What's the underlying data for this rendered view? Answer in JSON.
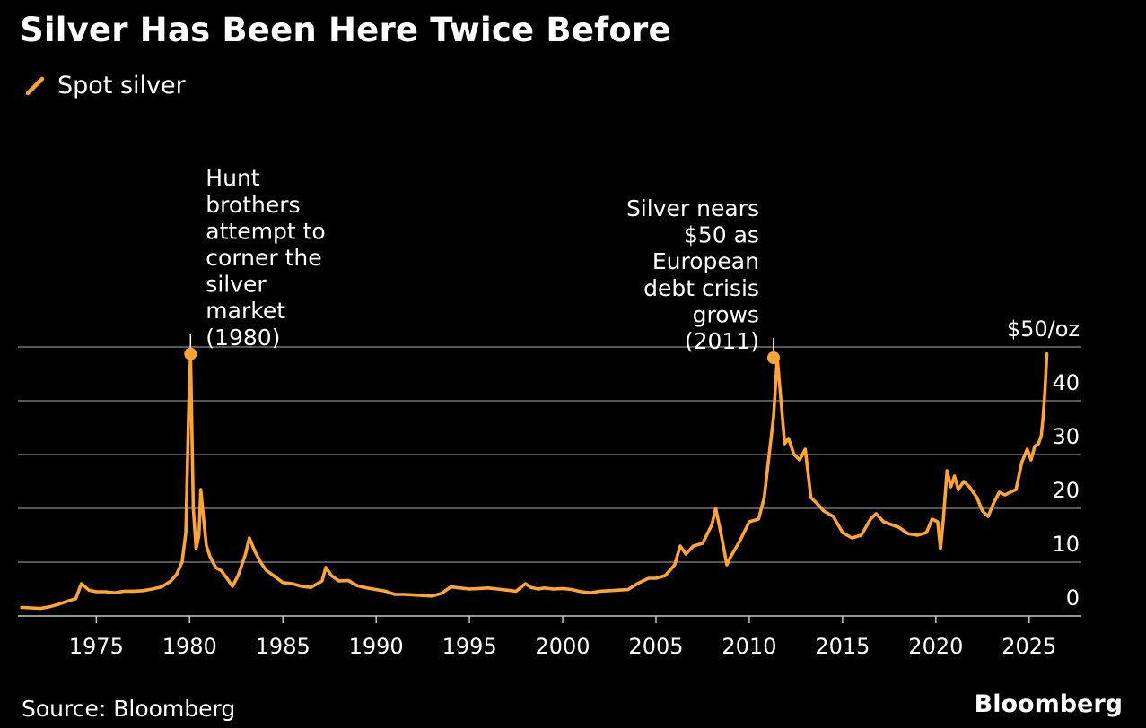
{
  "header": {
    "title": "Silver Has Been Here Twice Before"
  },
  "legend": {
    "label": "Spot silver",
    "color": "#ffa42f"
  },
  "footer": {
    "source": "Source: Bloomberg",
    "brand": "Bloomberg"
  },
  "chart_data": {
    "type": "line",
    "title": "Silver Has Been Here Twice Before",
    "xlabel": "",
    "ylabel": "",
    "xlim": [
      1970.8,
      2027.8
    ],
    "ylim": [
      0,
      50
    ],
    "grid": true,
    "legend_position": "top-left",
    "y_ticks": [
      {
        "value": 0,
        "label": "0"
      },
      {
        "value": 10,
        "label": "10"
      },
      {
        "value": 20,
        "label": "20"
      },
      {
        "value": 30,
        "label": "30"
      },
      {
        "value": 40,
        "label": "40"
      },
      {
        "value": 50,
        "label": "$50/oz"
      }
    ],
    "x_ticks": [
      {
        "value": 1975,
        "label": "1975"
      },
      {
        "value": 1980,
        "label": "1980"
      },
      {
        "value": 1985,
        "label": "1985"
      },
      {
        "value": 1990,
        "label": "1990"
      },
      {
        "value": 1995,
        "label": "1995"
      },
      {
        "value": 2000,
        "label": "2000"
      },
      {
        "value": 2005,
        "label": "2005"
      },
      {
        "value": 2010,
        "label": "2010"
      },
      {
        "value": 2015,
        "label": "2015"
      },
      {
        "value": 2020,
        "label": "2020"
      },
      {
        "value": 2025,
        "label": "2025"
      }
    ],
    "series": [
      {
        "name": "Spot silver",
        "color": "#ffa42f",
        "x": [
          1971.0,
          1971.5,
          1972.0,
          1972.5,
          1973.0,
          1973.5,
          1973.9,
          1974.2,
          1974.6,
          1975.0,
          1975.5,
          1976.0,
          1976.5,
          1977.0,
          1977.5,
          1978.0,
          1978.5,
          1979.0,
          1979.3,
          1979.6,
          1979.8,
          1979.95,
          1980.05,
          1980.2,
          1980.35,
          1980.5,
          1980.6,
          1980.75,
          1980.9,
          1981.1,
          1981.4,
          1981.7,
          1982.0,
          1982.3,
          1982.6,
          1983.0,
          1983.2,
          1983.5,
          1983.8,
          1984.1,
          1984.5,
          1985.0,
          1985.5,
          1986.0,
          1986.5,
          1987.1,
          1987.3,
          1987.6,
          1988.0,
          1988.5,
          1989.0,
          1989.5,
          1990.0,
          1990.5,
          1991.0,
          1991.5,
          1992.0,
          1992.5,
          1993.0,
          1993.5,
          1994.0,
          1994.5,
          1995.0,
          1995.5,
          1996.0,
          1996.5,
          1997.0,
          1997.5,
          1998.0,
          1998.3,
          1998.7,
          1999.0,
          1999.5,
          2000.0,
          2000.5,
          2001.0,
          2001.5,
          2002.0,
          2002.5,
          2003.0,
          2003.5,
          2004.0,
          2004.3,
          2004.6,
          2005.0,
          2005.5,
          2006.0,
          2006.3,
          2006.6,
          2007.0,
          2007.5,
          2008.0,
          2008.2,
          2008.5,
          2008.8,
          2009.0,
          2009.5,
          2010.0,
          2010.5,
          2010.8,
          2011.0,
          2011.3,
          2011.5,
          2011.7,
          2011.9,
          2012.1,
          2012.4,
          2012.7,
          2013.0,
          2013.3,
          2013.6,
          2014.0,
          2014.5,
          2015.0,
          2015.5,
          2016.0,
          2016.5,
          2016.8,
          2017.2,
          2017.6,
          2018.0,
          2018.5,
          2019.0,
          2019.5,
          2019.8,
          2020.1,
          2020.25,
          2020.4,
          2020.6,
          2020.8,
          2021.0,
          2021.2,
          2021.5,
          2021.8,
          2022.2,
          2022.5,
          2022.8,
          2023.1,
          2023.4,
          2023.7,
          2024.0,
          2024.3,
          2024.6,
          2024.9,
          2025.1,
          2025.3,
          2025.5,
          2025.65,
          2025.75,
          2025.85,
          2025.95
        ],
        "y": [
          1.6,
          1.5,
          1.4,
          1.7,
          2.2,
          2.8,
          3.2,
          6.0,
          4.8,
          4.5,
          4.5,
          4.3,
          4.6,
          4.6,
          4.7,
          5.0,
          5.4,
          6.5,
          7.7,
          10.0,
          15.5,
          38.0,
          48.7,
          20.0,
          12.5,
          15.0,
          23.5,
          18.0,
          13.0,
          11.0,
          9.0,
          8.4,
          7.0,
          5.5,
          7.5,
          11.5,
          14.5,
          12.0,
          10.0,
          8.5,
          7.5,
          6.2,
          6.0,
          5.5,
          5.3,
          6.5,
          9.0,
          7.5,
          6.5,
          6.6,
          5.6,
          5.2,
          4.9,
          4.6,
          4.0,
          4.0,
          3.9,
          3.8,
          3.7,
          4.2,
          5.4,
          5.2,
          5.0,
          5.1,
          5.2,
          5.0,
          4.8,
          4.6,
          6.0,
          5.3,
          5.0,
          5.2,
          5.0,
          5.1,
          4.9,
          4.5,
          4.3,
          4.6,
          4.7,
          4.8,
          4.9,
          6.0,
          6.5,
          7.0,
          7.0,
          7.5,
          9.5,
          13.0,
          11.5,
          13.0,
          13.5,
          17.0,
          20.0,
          15.0,
          9.5,
          11.0,
          14.0,
          17.5,
          18.0,
          22.0,
          28.0,
          37.0,
          48.0,
          40.0,
          32.0,
          33.0,
          30.0,
          29.0,
          31.0,
          22.0,
          21.0,
          19.5,
          18.5,
          15.5,
          14.5,
          15.0,
          18.0,
          19.0,
          17.5,
          17.0,
          16.5,
          15.3,
          15.0,
          15.5,
          18.0,
          17.5,
          12.5,
          18.0,
          27.0,
          24.0,
          26.0,
          23.5,
          25.0,
          24.0,
          22.0,
          19.5,
          18.5,
          21.0,
          23.0,
          22.5,
          23.0,
          23.5,
          28.5,
          31.0,
          29.0,
          31.5,
          32.0,
          33.5,
          37.0,
          42.0,
          48.7
        ]
      }
    ],
    "annotations": [
      {
        "x": 1980.05,
        "y": 48.7,
        "lines": [
          "Hunt",
          "brothers",
          "attempt to",
          "corner the",
          "silver",
          "market",
          "(1980)"
        ],
        "align": "right-of-point"
      },
      {
        "x": 2011.3,
        "y": 48.0,
        "lines": [
          "Silver nears",
          "$50 as",
          "European",
          "debt crisis",
          "grows",
          "(2011)"
        ],
        "align": "left-of-point"
      }
    ]
  }
}
